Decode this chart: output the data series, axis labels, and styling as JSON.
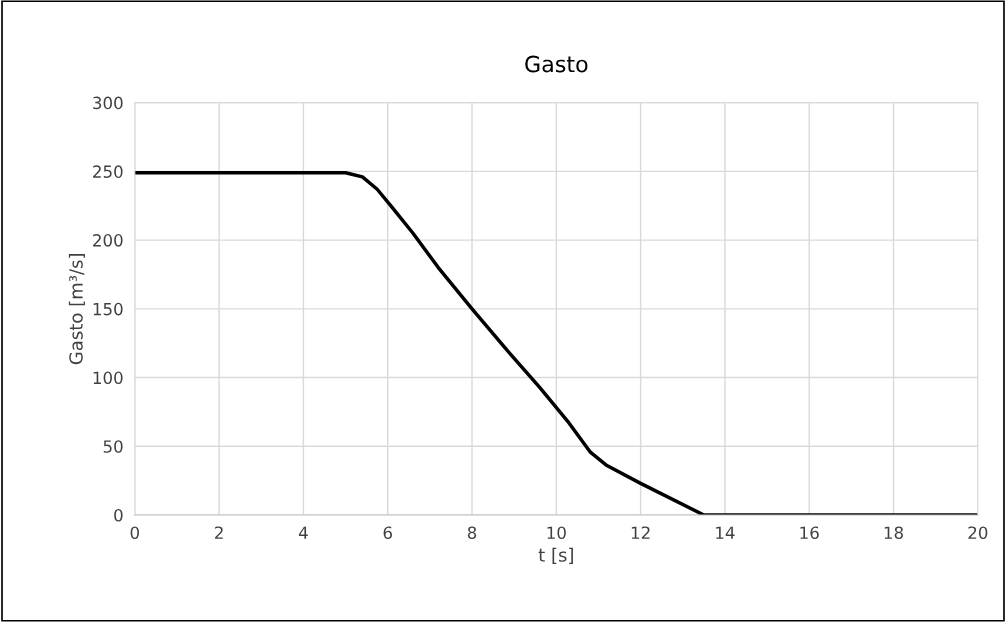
{
  "chart_data": {
    "type": "line",
    "title": "Gasto",
    "xlabel": "t [s]",
    "ylabel": "Gasto [m³/s]",
    "x": [
      0,
      5,
      5.4,
      5.75,
      6.1,
      6.6,
      7.2,
      8,
      8.8,
      9.6,
      10.3,
      10.8,
      11.2,
      12,
      13.5,
      16,
      20
    ],
    "series": [
      {
        "color": "#000000",
        "values": [
          249,
          249,
          246,
          237,
          224,
          205,
          180,
          150,
          121,
          93,
          67,
          46,
          36,
          23,
          0,
          0,
          0
        ]
      }
    ],
    "xlim": [
      0,
      20
    ],
    "xticks": [
      0,
      2,
      4,
      6,
      8,
      10,
      12,
      14,
      16,
      18,
      20
    ],
    "ylim": [
      0,
      300
    ],
    "yticks": [
      0,
      50,
      100,
      150,
      200,
      250,
      300
    ],
    "grid": true,
    "legend": false,
    "marker": "none",
    "line_style": "solid"
  }
}
